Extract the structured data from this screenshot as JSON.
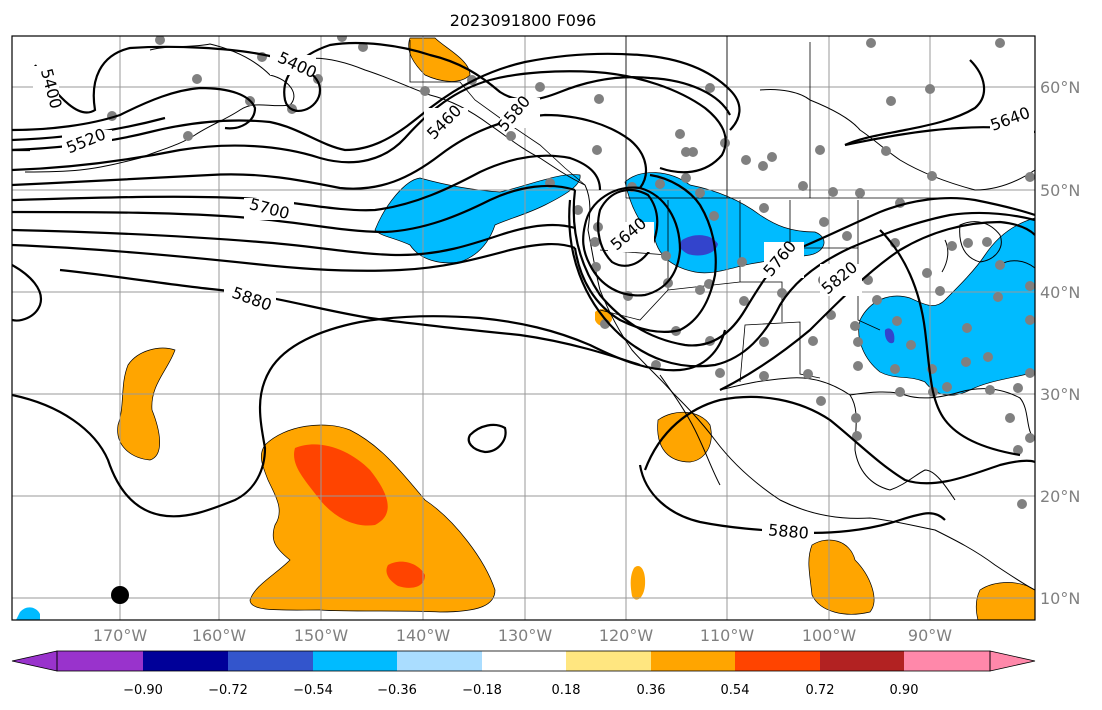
{
  "title": "2023091800 F096",
  "map": {
    "lon_ticks": [
      "170°W",
      "160°W",
      "150°W",
      "140°W",
      "130°W",
      "120°W",
      "110°W",
      "100°W",
      "90°W"
    ],
    "lat_ticks": [
      "60°N",
      "50°N",
      "40°N",
      "30°N",
      "20°N",
      "10°N"
    ],
    "contour_labels": [
      "5400",
      "5400",
      "5520",
      "5460",
      "5580",
      "5700",
      "5640",
      "5640",
      "5760",
      "5820",
      "5880",
      "5880"
    ],
    "grid": true
  },
  "colorbar": {
    "tick_labels": [
      "−0.90",
      "−0.72",
      "−0.54",
      "−0.36",
      "−0.18",
      "0.18",
      "0.36",
      "0.54",
      "0.72",
      "0.90"
    ],
    "colors": [
      "#9933cc",
      "#000099",
      "#3355cc",
      "#00bbff",
      "#aaddff",
      "#ffffff",
      "#ffe680",
      "#ffa500",
      "#ff4400",
      "#b22222",
      "#ff88aa"
    ]
  },
  "colors": {
    "neg_light": "#00bbff",
    "neg_dark": "#3344cc",
    "pos_orange": "#ffa500",
    "pos_red": "#ff4400",
    "station_dot": "#808080",
    "grid": "#999999"
  }
}
